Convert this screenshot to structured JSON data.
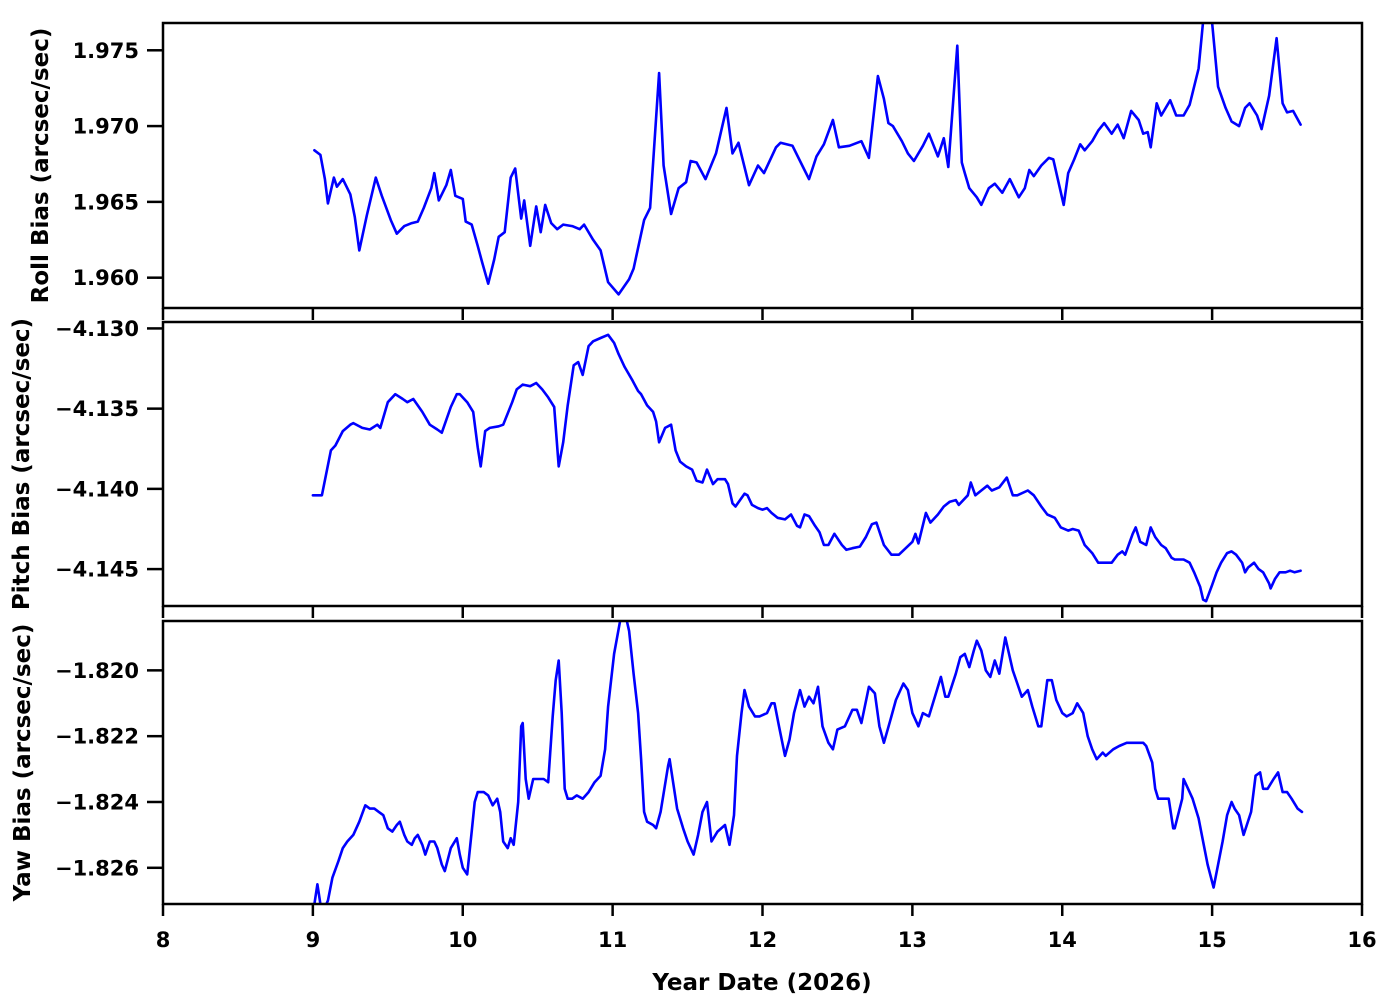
{
  "figure": {
    "xlabel": "Year Date (2026)",
    "line_color": "#0000ff",
    "background_color": "#ffffff",
    "xlim": [
      8,
      16
    ],
    "xticks": [
      8,
      9,
      10,
      11,
      12,
      13,
      14,
      15,
      16
    ],
    "xtick_labels": [
      "8",
      "9",
      "10",
      "11",
      "12",
      "13",
      "14",
      "15",
      "16"
    ]
  },
  "chart_data": [
    {
      "type": "line",
      "ylabel": "Roll Bias (arcsec/sec)",
      "xlabel": "Year Date (2026)",
      "legend": null,
      "grid": false,
      "xlim": [
        8,
        16
      ],
      "ylim": [
        1.958,
        1.9768
      ],
      "yticks": [
        1.975,
        1.97,
        1.965,
        1.96
      ],
      "ytick_labels": [
        "1.975",
        "1.970",
        "1.965",
        "1.960"
      ],
      "x": [
        9.01,
        9.05,
        9.08,
        9.1,
        9.14,
        9.16,
        9.2,
        9.25,
        9.28,
        9.31,
        9.36,
        9.42,
        9.46,
        9.52,
        9.56,
        9.61,
        9.66,
        9.7,
        9.74,
        9.79,
        9.81,
        9.84,
        9.89,
        9.92,
        9.95,
        10.0,
        10.02,
        10.06,
        10.1,
        10.13,
        10.17,
        10.21,
        10.24,
        10.28,
        10.32,
        10.35,
        10.39,
        10.41,
        10.45,
        10.49,
        10.52,
        10.55,
        10.59,
        10.63,
        10.67,
        10.73,
        10.78,
        10.81,
        10.87,
        10.92,
        10.97,
        11.04,
        11.11,
        11.14,
        11.21,
        11.25,
        11.31,
        11.34,
        11.39,
        11.44,
        11.49,
        11.52,
        11.56,
        11.62,
        11.69,
        11.76,
        11.8,
        11.84,
        11.91,
        11.97,
        12.01,
        12.09,
        12.12,
        12.2,
        12.27,
        12.31,
        12.36,
        12.41,
        12.47,
        12.51,
        12.58,
        12.66,
        12.71,
        12.77,
        12.81,
        12.84,
        12.87,
        12.93,
        12.97,
        13.01,
        13.07,
        13.11,
        13.17,
        13.21,
        13.24,
        13.3,
        13.33,
        13.35,
        13.38,
        13.43,
        13.46,
        13.51,
        13.55,
        13.6,
        13.65,
        13.71,
        13.75,
        13.78,
        13.81,
        13.86,
        13.91,
        13.94,
        14.01,
        14.04,
        14.08,
        14.12,
        14.15,
        14.2,
        14.24,
        14.28,
        14.33,
        14.37,
        14.41,
        14.46,
        14.51,
        14.54,
        14.57,
        14.59,
        14.63,
        14.66,
        14.72,
        14.76,
        14.81,
        14.85,
        14.91,
        14.97,
        15.04,
        15.09,
        15.13,
        15.18,
        15.22,
        15.25,
        15.3,
        15.33,
        15.38,
        15.43,
        15.47,
        15.5,
        15.54,
        15.59
      ],
      "y": [
        1.9684,
        1.9681,
        1.9665,
        1.9649,
        1.9666,
        1.966,
        1.9665,
        1.9655,
        1.964,
        1.9618,
        1.9641,
        1.9666,
        1.9654,
        1.9638,
        1.9629,
        1.9634,
        1.9636,
        1.9637,
        1.9646,
        1.9659,
        1.9669,
        1.9651,
        1.9661,
        1.9671,
        1.9654,
        1.9652,
        1.9637,
        1.9635,
        1.9621,
        1.961,
        1.9596,
        1.9612,
        1.9627,
        1.963,
        1.9666,
        1.9672,
        1.9639,
        1.9651,
        1.9621,
        1.9647,
        1.963,
        1.9648,
        1.9636,
        1.9632,
        1.9635,
        1.9634,
        1.9632,
        1.9635,
        1.9625,
        1.9618,
        1.9597,
        1.9589,
        1.9599,
        1.9606,
        1.9638,
        1.9646,
        1.9735,
        1.9674,
        1.9642,
        1.9659,
        1.9663,
        1.9677,
        1.9676,
        1.9665,
        1.9682,
        1.9712,
        1.9682,
        1.9689,
        1.9661,
        1.9674,
        1.9669,
        1.9686,
        1.9689,
        1.9687,
        1.9673,
        1.9665,
        1.968,
        1.9688,
        1.9704,
        1.9686,
        1.9687,
        1.969,
        1.9679,
        1.9733,
        1.9718,
        1.9702,
        1.97,
        1.969,
        1.9682,
        1.9677,
        1.9687,
        1.9695,
        1.968,
        1.9692,
        1.9673,
        1.9753,
        1.9676,
        1.9669,
        1.9659,
        1.9653,
        1.9648,
        1.9659,
        1.9662,
        1.9656,
        1.9665,
        1.9653,
        1.9659,
        1.9671,
        1.9667,
        1.9674,
        1.9679,
        1.9678,
        1.9648,
        1.9669,
        1.9678,
        1.9688,
        1.9684,
        1.969,
        1.9697,
        1.9702,
        1.9695,
        1.9701,
        1.9692,
        1.971,
        1.9704,
        1.9695,
        1.9696,
        1.9686,
        1.9715,
        1.9707,
        1.9717,
        1.9707,
        1.9707,
        1.9714,
        1.9738,
        1.98,
        1.9726,
        1.9712,
        1.9703,
        1.97,
        1.9712,
        1.9715,
        1.9707,
        1.9698,
        1.972,
        1.9758,
        1.9715,
        1.9709,
        1.971,
        1.9701
      ]
    },
    {
      "type": "line",
      "ylabel": "Pitch Bias (arcsec/sec)",
      "xlabel": "Year Date (2026)",
      "legend": null,
      "grid": false,
      "xlim": [
        8,
        16
      ],
      "ylim": [
        -4.1473,
        -4.1296
      ],
      "yticks": [
        -4.13,
        -4.135,
        -4.14,
        -4.145
      ],
      "ytick_labels": [
        "−4.130",
        "−4.135",
        "−4.140",
        "−4.145"
      ],
      "x": [
        9.0,
        9.06,
        9.12,
        9.15,
        9.2,
        9.25,
        9.27,
        9.33,
        9.38,
        9.43,
        9.45,
        9.5,
        9.55,
        9.6,
        9.63,
        9.67,
        9.73,
        9.78,
        9.83,
        9.86,
        9.92,
        9.96,
        9.98,
        10.03,
        10.07,
        10.1,
        10.12,
        10.15,
        10.18,
        10.24,
        10.27,
        10.33,
        10.36,
        10.4,
        10.45,
        10.49,
        10.53,
        10.57,
        10.61,
        10.64,
        10.67,
        10.7,
        10.74,
        10.77,
        10.8,
        10.84,
        10.87,
        10.92,
        10.97,
        11.01,
        11.04,
        11.08,
        11.13,
        11.17,
        11.19,
        11.23,
        11.27,
        11.29,
        11.31,
        11.35,
        11.39,
        11.42,
        11.45,
        11.49,
        11.53,
        11.56,
        11.6,
        11.63,
        11.67,
        11.7,
        11.75,
        11.77,
        11.8,
        11.82,
        11.88,
        11.9,
        11.93,
        11.97,
        12.0,
        12.03,
        12.06,
        12.1,
        12.15,
        12.19,
        12.23,
        12.25,
        12.28,
        12.31,
        12.35,
        12.38,
        12.41,
        12.44,
        12.48,
        12.53,
        12.56,
        12.6,
        12.65,
        12.69,
        12.73,
        12.76,
        12.81,
        12.86,
        12.91,
        13.0,
        13.02,
        13.04,
        13.09,
        13.12,
        13.17,
        13.21,
        13.25,
        13.29,
        13.31,
        13.37,
        13.39,
        13.42,
        13.46,
        13.5,
        13.53,
        13.58,
        13.63,
        13.67,
        13.7,
        13.77,
        13.81,
        13.86,
        13.9,
        13.95,
        13.99,
        14.04,
        14.07,
        14.11,
        14.15,
        14.2,
        14.24,
        14.28,
        14.33,
        14.37,
        14.4,
        14.42,
        14.47,
        14.49,
        14.52,
        14.56,
        14.59,
        14.62,
        14.66,
        14.69,
        14.73,
        14.75,
        14.81,
        14.85,
        14.88,
        14.92,
        14.94,
        14.96,
        15.0,
        15.03,
        15.06,
        15.1,
        15.13,
        15.16,
        15.2,
        15.22,
        15.24,
        15.28,
        15.31,
        15.34,
        15.38,
        15.39,
        15.42,
        15.45,
        15.49,
        15.52,
        15.55,
        15.59
      ],
      "y": [
        -4.1404,
        -4.1404,
        -4.1376,
        -4.1373,
        -4.1364,
        -4.136,
        -4.1359,
        -4.1362,
        -4.1363,
        -4.136,
        -4.1362,
        -4.1346,
        -4.1341,
        -4.1344,
        -4.1346,
        -4.1344,
        -4.1352,
        -4.136,
        -4.1363,
        -4.1365,
        -4.1349,
        -4.1341,
        -4.1341,
        -4.1346,
        -4.1352,
        -4.1374,
        -4.1386,
        -4.1364,
        -4.1362,
        -4.1361,
        -4.136,
        -4.1346,
        -4.1338,
        -4.1335,
        -4.1336,
        -4.1334,
        -4.1338,
        -4.1343,
        -4.1349,
        -4.1386,
        -4.1371,
        -4.1348,
        -4.1323,
        -4.1321,
        -4.1329,
        -4.1311,
        -4.1308,
        -4.1306,
        -4.1304,
        -4.1309,
        -4.1316,
        -4.1324,
        -4.1332,
        -4.1339,
        -4.1341,
        -4.1348,
        -4.1352,
        -4.1358,
        -4.1371,
        -4.1362,
        -4.136,
        -4.1376,
        -4.1383,
        -4.1386,
        -4.1388,
        -4.1395,
        -4.1396,
        -4.1388,
        -4.1397,
        -4.1394,
        -4.1394,
        -4.1397,
        -4.1409,
        -4.1411,
        -4.1403,
        -4.1404,
        -4.141,
        -4.1412,
        -4.1413,
        -4.1412,
        -4.1415,
        -4.1418,
        -4.1419,
        -4.1416,
        -4.1423,
        -4.1424,
        -4.1416,
        -4.1417,
        -4.1423,
        -4.1427,
        -4.1435,
        -4.1435,
        -4.1428,
        -4.1435,
        -4.1438,
        -4.1437,
        -4.1436,
        -4.143,
        -4.1422,
        -4.1421,
        -4.1435,
        -4.1441,
        -4.1441,
        -4.1433,
        -4.1428,
        -4.1434,
        -4.1415,
        -4.1421,
        -4.1416,
        -4.1411,
        -4.1408,
        -4.1407,
        -4.141,
        -4.1404,
        -4.1396,
        -4.1404,
        -4.1401,
        -4.1398,
        -4.1401,
        -4.1399,
        -4.1393,
        -4.1404,
        -4.1404,
        -4.1401,
        -4.1404,
        -4.1411,
        -4.1416,
        -4.1418,
        -4.1424,
        -4.1426,
        -4.1425,
        -4.1426,
        -4.1435,
        -4.144,
        -4.1446,
        -4.1446,
        -4.1446,
        -4.1441,
        -4.1439,
        -4.1441,
        -4.1428,
        -4.1424,
        -4.1433,
        -4.1435,
        -4.1424,
        -4.143,
        -4.1435,
        -4.1437,
        -4.1443,
        -4.1444,
        -4.1444,
        -4.1446,
        -4.1452,
        -4.1461,
        -4.1469,
        -4.147,
        -4.146,
        -4.1452,
        -4.1446,
        -4.144,
        -4.1439,
        -4.1441,
        -4.1446,
        -4.1452,
        -4.1449,
        -4.1446,
        -4.145,
        -4.1452,
        -4.1459,
        -4.1462,
        -4.1456,
        -4.1452,
        -4.1452,
        -4.1451,
        -4.1452,
        -4.1451
      ]
    },
    {
      "type": "line",
      "ylabel": "Yaw Bias (arcsec/sec)",
      "xlabel": "Year Date (2026)",
      "legend": null,
      "grid": false,
      "xlim": [
        8,
        16
      ],
      "ylim": [
        -1.8271,
        -1.8185
      ],
      "yticks": [
        -1.82,
        -1.822,
        -1.824,
        -1.826
      ],
      "ytick_labels": [
        "−1.820",
        "−1.822",
        "−1.824",
        "−1.826"
      ],
      "x": [
        9.0,
        9.03,
        9.06,
        9.1,
        9.13,
        9.17,
        9.2,
        9.23,
        9.27,
        9.31,
        9.35,
        9.38,
        9.41,
        9.44,
        9.47,
        9.5,
        9.53,
        9.56,
        9.58,
        9.61,
        9.63,
        9.66,
        9.68,
        9.7,
        9.73,
        9.75,
        9.78,
        9.81,
        9.83,
        9.86,
        9.88,
        9.92,
        9.96,
        9.98,
        10.0,
        10.03,
        10.06,
        10.08,
        10.1,
        10.14,
        10.17,
        10.2,
        10.23,
        10.25,
        10.27,
        10.3,
        10.32,
        10.34,
        10.37,
        10.39,
        10.4,
        10.42,
        10.44,
        10.47,
        10.5,
        10.54,
        10.57,
        10.6,
        10.62,
        10.64,
        10.66,
        10.68,
        10.7,
        10.73,
        10.76,
        10.8,
        10.84,
        10.88,
        10.92,
        10.95,
        10.97,
        11.01,
        11.07,
        11.11,
        11.14,
        11.17,
        11.19,
        11.21,
        11.23,
        11.27,
        11.29,
        11.32,
        11.37,
        11.38,
        11.41,
        11.43,
        11.47,
        11.5,
        11.54,
        11.57,
        11.6,
        11.63,
        11.66,
        11.7,
        11.75,
        11.78,
        11.81,
        11.83,
        11.86,
        11.88,
        11.91,
        11.95,
        11.98,
        12.03,
        12.06,
        12.08,
        12.11,
        12.15,
        12.18,
        12.21,
        12.25,
        12.28,
        12.31,
        12.34,
        12.37,
        12.4,
        12.44,
        12.47,
        12.5,
        12.55,
        12.6,
        12.63,
        12.66,
        12.71,
        12.75,
        12.78,
        12.81,
        12.86,
        12.89,
        12.94,
        12.97,
        13.0,
        13.04,
        13.07,
        13.11,
        13.15,
        13.19,
        13.22,
        13.24,
        13.29,
        13.32,
        13.35,
        13.38,
        13.41,
        13.43,
        13.46,
        13.49,
        13.52,
        13.55,
        13.58,
        13.62,
        13.67,
        13.7,
        13.73,
        13.77,
        13.8,
        13.84,
        13.86,
        13.9,
        13.93,
        13.96,
        14.0,
        14.03,
        14.07,
        14.1,
        14.14,
        14.17,
        14.2,
        14.23,
        14.27,
        14.29,
        14.34,
        14.38,
        14.43,
        14.49,
        14.54,
        14.56,
        14.6,
        14.62,
        14.64,
        14.67,
        14.71,
        14.74,
        14.75,
        14.8,
        14.81,
        14.84,
        14.87,
        14.91,
        14.94,
        14.97,
        15.01,
        15.04,
        15.07,
        15.1,
        15.13,
        15.15,
        15.18,
        15.21,
        15.26,
        15.29,
        15.32,
        15.34,
        15.37,
        15.41,
        15.44,
        15.47,
        15.5,
        15.53,
        15.57,
        15.6
      ],
      "y": [
        -1.8274,
        -1.8265,
        -1.8274,
        -1.827,
        -1.8263,
        -1.8258,
        -1.8254,
        -1.8252,
        -1.825,
        -1.8246,
        -1.8241,
        -1.8242,
        -1.8242,
        -1.8243,
        -1.8244,
        -1.8248,
        -1.8249,
        -1.8247,
        -1.8246,
        -1.825,
        -1.8252,
        -1.8253,
        -1.8251,
        -1.825,
        -1.8253,
        -1.8256,
        -1.8252,
        -1.8252,
        -1.8254,
        -1.8259,
        -1.8261,
        -1.8254,
        -1.8251,
        -1.8256,
        -1.826,
        -1.8262,
        -1.8249,
        -1.824,
        -1.8237,
        -1.8237,
        -1.8238,
        -1.8241,
        -1.8239,
        -1.8243,
        -1.8252,
        -1.8254,
        -1.8251,
        -1.8253,
        -1.824,
        -1.8217,
        -1.8216,
        -1.8233,
        -1.8239,
        -1.8233,
        -1.8233,
        -1.8233,
        -1.8234,
        -1.8214,
        -1.8203,
        -1.8197,
        -1.8213,
        -1.8236,
        -1.8239,
        -1.8239,
        -1.8238,
        -1.8239,
        -1.8237,
        -1.8234,
        -1.8232,
        -1.8224,
        -1.8211,
        -1.8195,
        -1.818,
        -1.8188,
        -1.8201,
        -1.8213,
        -1.8227,
        -1.8243,
        -1.8246,
        -1.8247,
        -1.8248,
        -1.8243,
        -1.8229,
        -1.8227,
        -1.8236,
        -1.8242,
        -1.8248,
        -1.8252,
        -1.8256,
        -1.825,
        -1.8243,
        -1.824,
        -1.8252,
        -1.8249,
        -1.8247,
        -1.8253,
        -1.8244,
        -1.8226,
        -1.8213,
        -1.8206,
        -1.8211,
        -1.8214,
        -1.8214,
        -1.8213,
        -1.821,
        -1.821,
        -1.8217,
        -1.8226,
        -1.8221,
        -1.8213,
        -1.8206,
        -1.8211,
        -1.8208,
        -1.821,
        -1.8205,
        -1.8217,
        -1.8222,
        -1.8224,
        -1.8218,
        -1.8217,
        -1.8212,
        -1.8212,
        -1.8216,
        -1.8205,
        -1.8207,
        -1.8217,
        -1.8222,
        -1.8214,
        -1.8209,
        -1.8204,
        -1.8206,
        -1.8213,
        -1.8217,
        -1.8213,
        -1.8214,
        -1.8208,
        -1.8202,
        -1.8208,
        -1.8208,
        -1.8201,
        -1.8196,
        -1.8195,
        -1.8199,
        -1.8194,
        -1.8191,
        -1.8194,
        -1.82,
        -1.8202,
        -1.8197,
        -1.8201,
        -1.819,
        -1.82,
        -1.8204,
        -1.8208,
        -1.8206,
        -1.8211,
        -1.8217,
        -1.8217,
        -1.8203,
        -1.8203,
        -1.8209,
        -1.8213,
        -1.8214,
        -1.8213,
        -1.821,
        -1.8213,
        -1.822,
        -1.8224,
        -1.8227,
        -1.8225,
        -1.8226,
        -1.8224,
        -1.8223,
        -1.8222,
        -1.8222,
        -1.8222,
        -1.8223,
        -1.8228,
        -1.8236,
        -1.8239,
        -1.8239,
        -1.8239,
        -1.8248,
        -1.8248,
        -1.8239,
        -1.8233,
        -1.8236,
        -1.8239,
        -1.8245,
        -1.8252,
        -1.8259,
        -1.8266,
        -1.8259,
        -1.8252,
        -1.8244,
        -1.824,
        -1.8242,
        -1.8244,
        -1.825,
        -1.8243,
        -1.8232,
        -1.8231,
        -1.8236,
        -1.8236,
        -1.8233,
        -1.8231,
        -1.8237,
        -1.8237,
        -1.8239,
        -1.8242,
        -1.8243
      ]
    }
  ]
}
